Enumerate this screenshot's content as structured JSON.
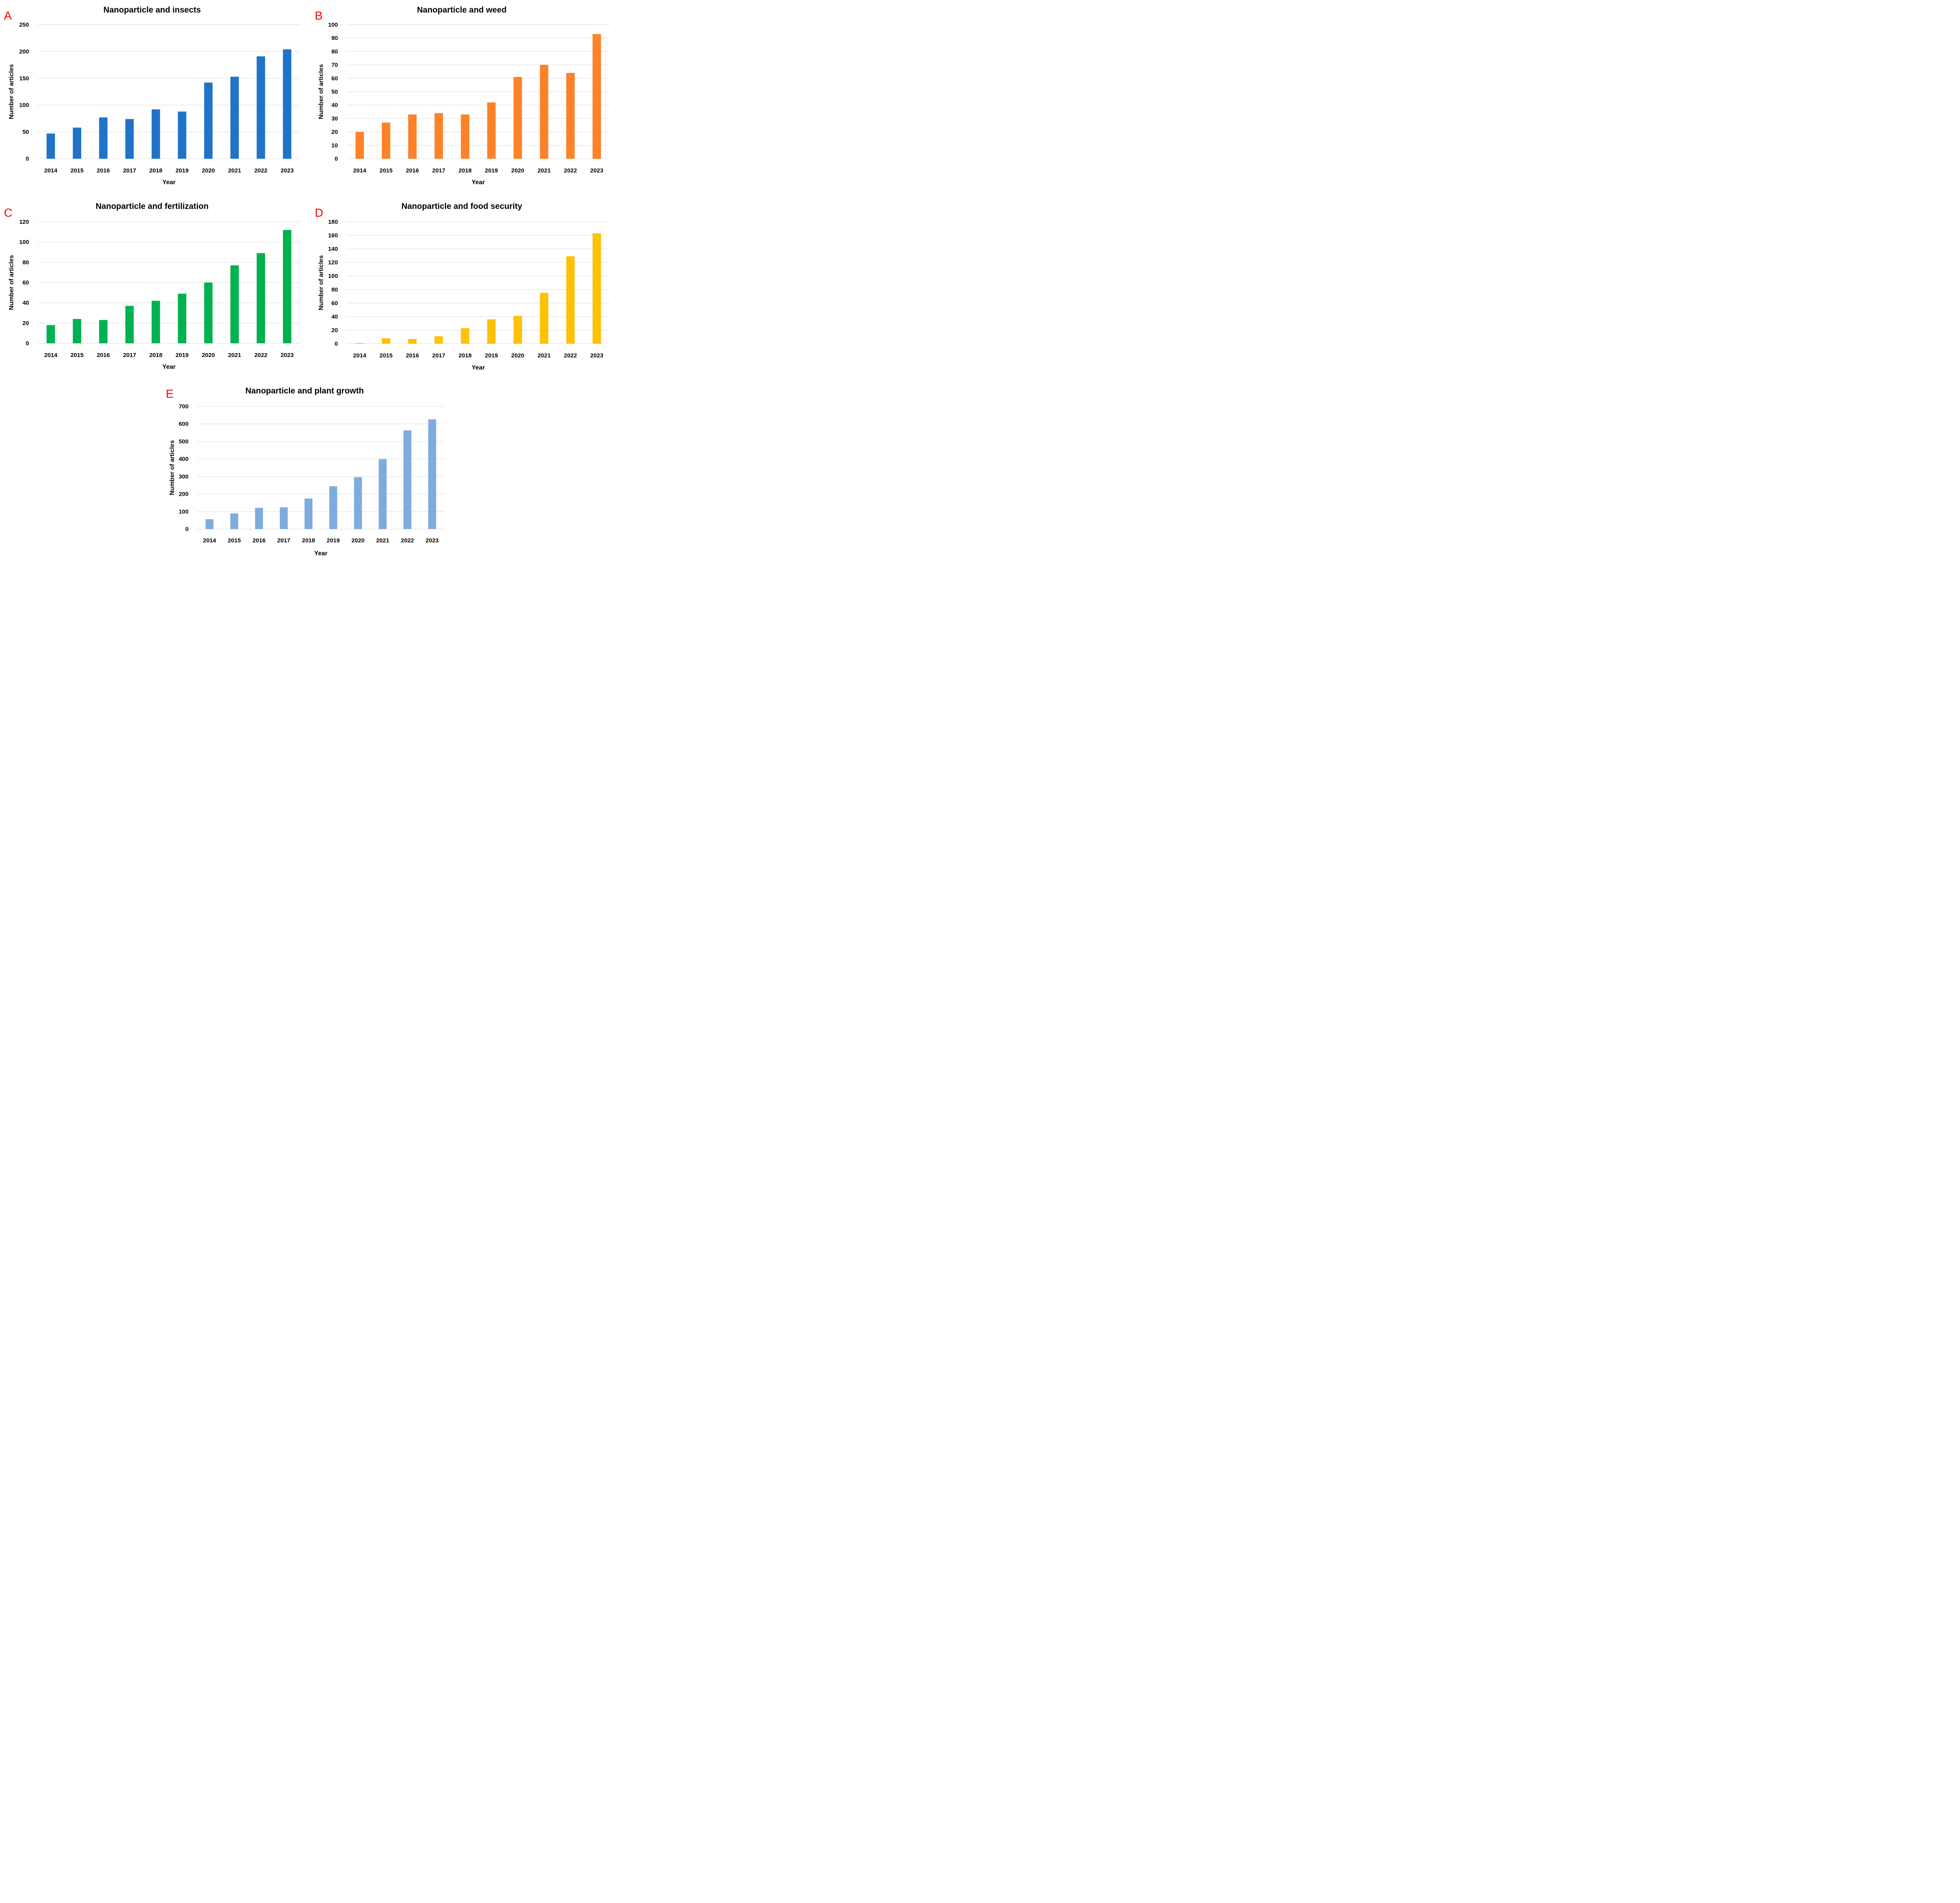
{
  "chart_data": [
    {
      "panel": "A",
      "type": "bar",
      "title": "Nanoparticle and insects",
      "xlabel": "Year",
      "ylabel": "Number of articles",
      "categories": [
        "2014",
        "2015",
        "2016",
        "2017",
        "2018",
        "2019",
        "2020",
        "2021",
        "2022",
        "2023"
      ],
      "values": [
        47,
        58,
        77,
        74,
        92,
        88,
        142,
        153,
        191,
        204
      ],
      "ylim": [
        0,
        250
      ],
      "yticks": [
        0,
        50,
        100,
        150,
        200,
        250
      ],
      "color": "#1f73c8",
      "grid": true
    },
    {
      "panel": "B",
      "type": "bar",
      "title": "Nanoparticle and weed",
      "xlabel": "Year",
      "ylabel": "Number of articles",
      "categories": [
        "2014",
        "2015",
        "2016",
        "2017",
        "2018",
        "2019",
        "2020",
        "2021",
        "2022",
        "2023"
      ],
      "values": [
        20,
        27,
        33,
        34,
        33,
        42,
        61,
        70,
        64,
        93
      ],
      "ylim": [
        0,
        100
      ],
      "yticks": [
        0,
        10,
        20,
        30,
        40,
        50,
        60,
        70,
        80,
        90,
        100
      ],
      "color": "#fd8228",
      "grid": true
    },
    {
      "panel": "C",
      "type": "bar",
      "title": "Nanoparticle and fertilization",
      "xlabel": "Year",
      "ylabel": "Number of articles",
      "categories": [
        "2014",
        "2015",
        "2016",
        "2017",
        "2018",
        "2019",
        "2020",
        "2021",
        "2022",
        "2023"
      ],
      "values": [
        18,
        24,
        23,
        37,
        42,
        49,
        60,
        77,
        89,
        112
      ],
      "ylim": [
        0,
        120
      ],
      "yticks": [
        0,
        20,
        40,
        60,
        80,
        100,
        120
      ],
      "color": "#00b24f",
      "grid": true
    },
    {
      "panel": "D",
      "type": "bar",
      "title": "Nanoparticle and food security",
      "xlabel": "Year",
      "ylabel": "Number of articles",
      "categories": [
        "2014",
        "2015",
        "2016",
        "2017",
        "2018",
        "2019",
        "2020",
        "2021",
        "2022",
        "2023"
      ],
      "values": [
        1,
        8,
        7,
        11,
        23,
        36,
        41,
        75,
        129,
        163
      ],
      "ylim": [
        0,
        180
      ],
      "yticks": [
        0,
        20,
        40,
        60,
        80,
        100,
        120,
        140,
        160,
        180
      ],
      "color": "#ffc105",
      "grid": true
    },
    {
      "panel": "E",
      "type": "bar",
      "title": "Nanoparticle and plant growth",
      "xlabel": "Year",
      "ylabel": "Number of articles",
      "categories": [
        "2014",
        "2015",
        "2016",
        "2017",
        "2018",
        "2019",
        "2020",
        "2021",
        "2022",
        "2023"
      ],
      "values": [
        56,
        89,
        121,
        124,
        174,
        244,
        296,
        399,
        563,
        626
      ],
      "ylim": [
        0,
        700
      ],
      "yticks": [
        0,
        100,
        200,
        300,
        400,
        500,
        600,
        700
      ],
      "color": "#80abde",
      "grid": true
    }
  ]
}
